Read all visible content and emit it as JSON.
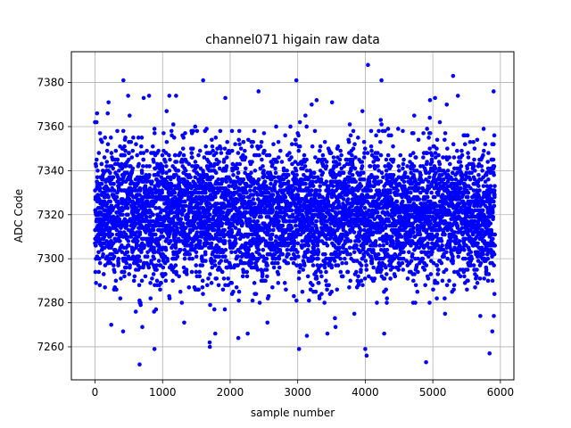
{
  "chart_data": {
    "type": "scatter",
    "title": "channel071 higain raw data",
    "xlabel": "sample number",
    "ylabel": "ADC Code",
    "xlim": [
      -350,
      6200
    ],
    "ylim": [
      7245,
      7394
    ],
    "xticks": [
      0,
      1000,
      2000,
      3000,
      4000,
      5000,
      6000
    ],
    "yticks": [
      7260,
      7280,
      7300,
      7320,
      7340,
      7360,
      7380
    ],
    "grid": true,
    "legend": "none",
    "marker_color": "#0000ff",
    "n_samples": 5920,
    "distribution": {
      "center": 7320,
      "spread_sd": 15,
      "min": 7252,
      "max": 7388
    },
    "highlighted_points": [
      {
        "x": 0,
        "y": 7362
      },
      {
        "x": 30,
        "y": 7366
      },
      {
        "x": 200,
        "y": 7371
      },
      {
        "x": 240,
        "y": 7270
      },
      {
        "x": 420,
        "y": 7381
      },
      {
        "x": 490,
        "y": 7374
      },
      {
        "x": 660,
        "y": 7252
      },
      {
        "x": 700,
        "y": 7269
      },
      {
        "x": 720,
        "y": 7373
      },
      {
        "x": 800,
        "y": 7374
      },
      {
        "x": 880,
        "y": 7259
      },
      {
        "x": 1060,
        "y": 7367
      },
      {
        "x": 1100,
        "y": 7374
      },
      {
        "x": 1200,
        "y": 7374
      },
      {
        "x": 1320,
        "y": 7271
      },
      {
        "x": 1600,
        "y": 7381
      },
      {
        "x": 1700,
        "y": 7260
      },
      {
        "x": 1780,
        "y": 7266
      },
      {
        "x": 2260,
        "y": 7266
      },
      {
        "x": 2420,
        "y": 7376
      },
      {
        "x": 2980,
        "y": 7381
      },
      {
        "x": 3020,
        "y": 7259
      },
      {
        "x": 3280,
        "y": 7372
      },
      {
        "x": 3440,
        "y": 7266
      },
      {
        "x": 3560,
        "y": 7269
      },
      {
        "x": 4000,
        "y": 7259
      },
      {
        "x": 4020,
        "y": 7256
      },
      {
        "x": 4040,
        "y": 7388
      },
      {
        "x": 4240,
        "y": 7381
      },
      {
        "x": 4280,
        "y": 7266
      },
      {
        "x": 4900,
        "y": 7253
      },
      {
        "x": 5300,
        "y": 7383
      },
      {
        "x": 5840,
        "y": 7257
      },
      {
        "x": 5880,
        "y": 7267
      },
      {
        "x": 5900,
        "y": 7376
      }
    ]
  }
}
